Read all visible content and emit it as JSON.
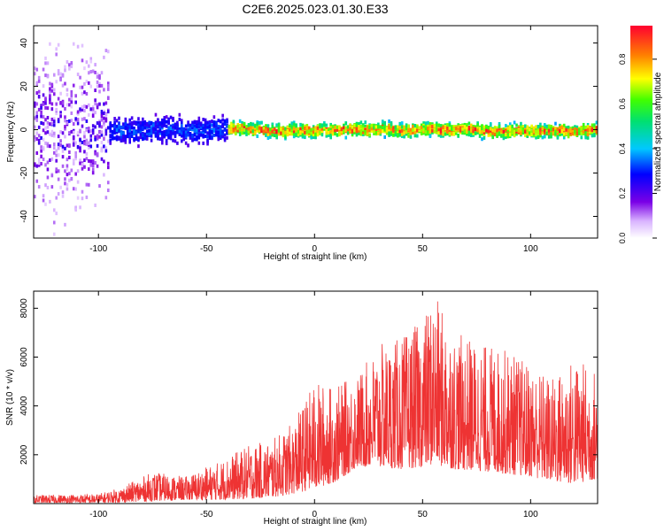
{
  "figure_title": "C2E6.2025.023.01.30.E33",
  "chart_data": [
    {
      "type": "heatmap",
      "xlabel": "Height of straight line (km)",
      "ylabel": "Frequency (Hz)",
      "xlim": [
        -130,
        131
      ],
      "ylim": [
        -50,
        48
      ],
      "xticks": [
        -100,
        -50,
        0,
        50,
        100
      ],
      "yticks": [
        -40,
        -20,
        0,
        20,
        40
      ],
      "colorbar": {
        "label": "Normalized spectral amplitude",
        "range": [
          0,
          0.95
        ],
        "ticks": [
          0.0,
          0.2,
          0.4,
          0.6,
          0.8
        ],
        "colormap": "white-purple-blue-cyan-green-yellow-orange-red"
      },
      "description_zones": [
        {
          "x": [
            -130,
            -95
          ],
          "spread_hz": 50,
          "amplitude": [
            0.05,
            0.25
          ]
        },
        {
          "x": [
            -95,
            -40
          ],
          "spread_hz": 12,
          "amplitude": [
            0.15,
            0.35
          ]
        },
        {
          "x": [
            -40,
            131
          ],
          "spread_hz": 6,
          "amplitude": [
            0.3,
            0.9
          ]
        }
      ]
    },
    {
      "type": "line",
      "xlabel": "Height of straight line (km)",
      "ylabel": "SNR (10 * v/v)",
      "xlim": [
        -130,
        131
      ],
      "ylim": [
        0,
        8700
      ],
      "xticks": [
        -100,
        -50,
        0,
        50,
        100
      ],
      "yticks": [
        2000,
        4000,
        6000,
        8000
      ],
      "color": "#ee3333",
      "envelope": [
        {
          "x": -130,
          "low": 30,
          "high": 350
        },
        {
          "x": -100,
          "low": 30,
          "high": 400
        },
        {
          "x": -90,
          "low": 50,
          "high": 650
        },
        {
          "x": -75,
          "low": 100,
          "high": 1300
        },
        {
          "x": -60,
          "low": 150,
          "high": 1100
        },
        {
          "x": -45,
          "low": 150,
          "high": 1700
        },
        {
          "x": -30,
          "low": 200,
          "high": 2400
        },
        {
          "x": -20,
          "low": 250,
          "high": 2600
        },
        {
          "x": -10,
          "low": 400,
          "high": 3300
        },
        {
          "x": 0,
          "low": 600,
          "high": 5000
        },
        {
          "x": 10,
          "low": 900,
          "high": 4800
        },
        {
          "x": 20,
          "low": 1500,
          "high": 5300
        },
        {
          "x": 30,
          "low": 1500,
          "high": 6500
        },
        {
          "x": 40,
          "low": 1400,
          "high": 6800
        },
        {
          "x": 50,
          "low": 1500,
          "high": 7500
        },
        {
          "x": 55,
          "low": 1600,
          "high": 8600
        },
        {
          "x": 65,
          "low": 1400,
          "high": 7000
        },
        {
          "x": 80,
          "low": 1300,
          "high": 6500
        },
        {
          "x": 90,
          "low": 1200,
          "high": 6300
        },
        {
          "x": 100,
          "low": 1100,
          "high": 5700
        },
        {
          "x": 110,
          "low": 900,
          "high": 5200
        },
        {
          "x": 120,
          "low": 800,
          "high": 6000
        },
        {
          "x": 131,
          "low": 1000,
          "high": 5500
        }
      ]
    }
  ]
}
